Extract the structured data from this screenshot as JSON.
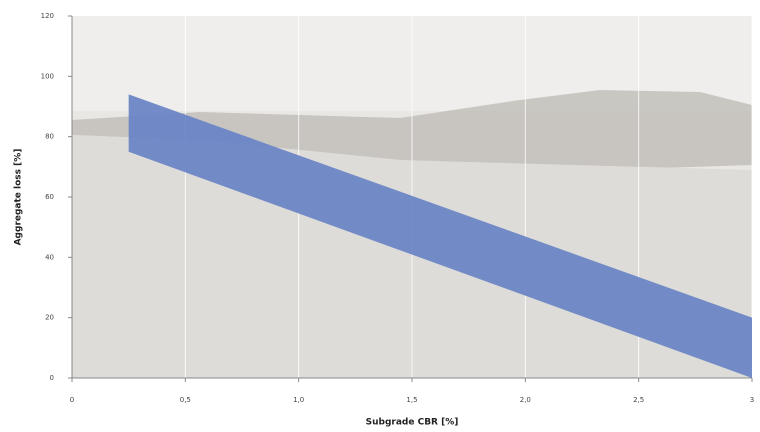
{
  "chart_data": {
    "type": "band",
    "xlabel": "Subgrade CBR [%]",
    "ylabel": "Aggregate loss [%]",
    "x": [
      0.25,
      3
    ],
    "upper": [
      94,
      20
    ],
    "lower": [
      75,
      0
    ],
    "color": "#6b86c6",
    "xlim": [
      0,
      3
    ],
    "xticks": [
      0,
      {
        "value": 0.5,
        "label": "0,5"
      },
      {
        "value": 1,
        "label": "1,0"
      },
      {
        "value": 1.5,
        "label": "1,5"
      },
      {
        "value": 2,
        "label": "2,0"
      },
      {
        "value": 2.5,
        "label": "2,5"
      },
      3
    ],
    "ylim": [
      0,
      120
    ],
    "yticks": [
      0,
      20,
      40,
      60,
      80,
      100,
      120
    ],
    "grid": true
  }
}
